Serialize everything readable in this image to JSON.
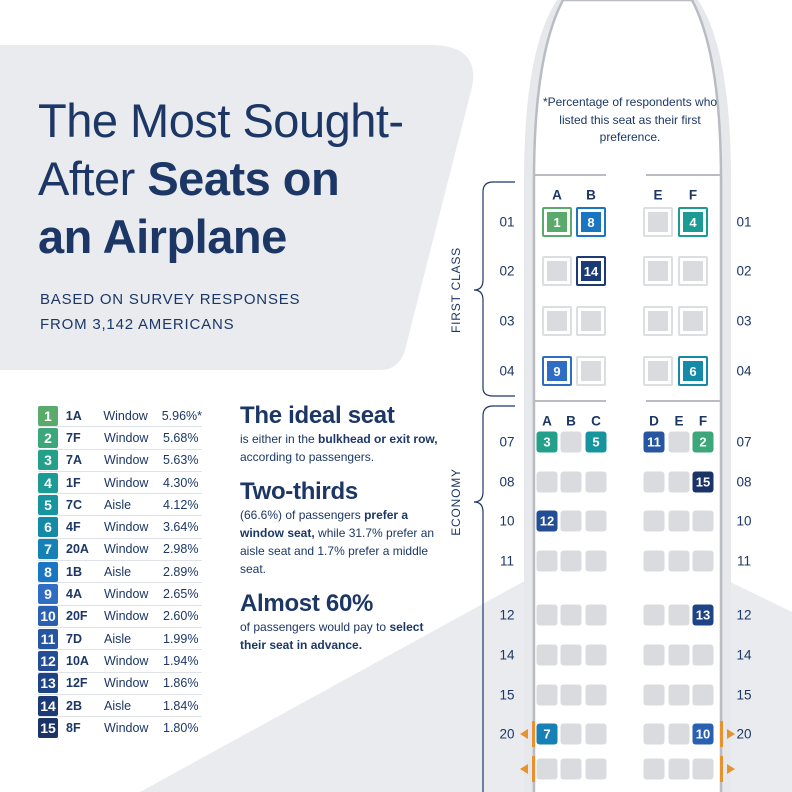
{
  "header": {
    "title_line1": "The Most Sought-",
    "title_line2_regular": "After ",
    "title_line2_bold": "Seats on",
    "title_line3_bold": "an Airplane",
    "subtitle_line1": "BASED ON SURVEY RESPONSES",
    "subtitle_line2": "FROM 3,142 AMERICANS"
  },
  "ranking": [
    {
      "rank": "1",
      "seat": "1A",
      "type": "Window",
      "pct": "5.96%*",
      "color": "#5aab6b"
    },
    {
      "rank": "2",
      "seat": "7F",
      "type": "Window",
      "pct": "5.68%",
      "color": "#3ba77a"
    },
    {
      "rank": "3",
      "seat": "7A",
      "type": "Window",
      "pct": "5.63%",
      "color": "#23a089"
    },
    {
      "rank": "4",
      "seat": "1F",
      "type": "Window",
      "pct": "4.30%",
      "color": "#1b9b94"
    },
    {
      "rank": "5",
      "seat": "7C",
      "type": "Aisle",
      "pct": "4.12%",
      "color": "#17959f"
    },
    {
      "rank": "6",
      "seat": "4F",
      "type": "Window",
      "pct": "3.64%",
      "color": "#158aa7"
    },
    {
      "rank": "7",
      "seat": "20A",
      "type": "Window",
      "pct": "2.98%",
      "color": "#1681b6"
    },
    {
      "rank": "8",
      "seat": "1B",
      "type": "Aisle",
      "pct": "2.89%",
      "color": "#1a75c2"
    },
    {
      "rank": "9",
      "seat": "4A",
      "type": "Window",
      "pct": "2.65%",
      "color": "#2f6cc4"
    },
    {
      "rank": "10",
      "seat": "20F",
      "type": "Window",
      "pct": "2.60%",
      "color": "#2a60b1"
    },
    {
      "rank": "11",
      "seat": "7D",
      "type": "Aisle",
      "pct": "1.99%",
      "color": "#2656a2"
    },
    {
      "rank": "12",
      "seat": "10A",
      "type": "Window",
      "pct": "1.94%",
      "color": "#234d94"
    },
    {
      "rank": "13",
      "seat": "12F",
      "type": "Window",
      "pct": "1.86%",
      "color": "#1f4486"
    },
    {
      "rank": "14",
      "seat": "2B",
      "type": "Aisle",
      "pct": "1.84%",
      "color": "#1c3b75"
    },
    {
      "rank": "15",
      "seat": "8F",
      "type": "Window",
      "pct": "1.80%",
      "color": "#1a3467"
    }
  ],
  "facts": [
    {
      "heading": "The ideal seat",
      "parts": [
        [
          "is either in the ",
          false
        ],
        [
          "bulkhead or exit row,",
          true
        ],
        [
          " according to passengers.",
          false
        ]
      ]
    },
    {
      "heading": "Two-thirds",
      "parts": [
        [
          "(66.6%) of passengers ",
          false
        ],
        [
          "prefer a window seat,",
          true
        ],
        [
          " while 31.7% prefer an aisle seat and 1.7% prefer a middle seat.",
          false
        ]
      ]
    },
    {
      "heading": "Almost 60%",
      "parts": [
        [
          "of passengers would pay to ",
          false
        ],
        [
          "select their seat in advance.",
          true
        ]
      ]
    }
  ],
  "seatmap": {
    "note": "*Percentage of respondents who listed this seat as their first preference.",
    "first_class": {
      "label": "FIRST CLASS",
      "columns": [
        "A",
        "B",
        "E",
        "F"
      ],
      "rows": [
        "01",
        "02",
        "03",
        "04"
      ],
      "ranked": {
        "01A": "1",
        "01B": "8",
        "01F": "4",
        "02B": "14",
        "04A": "9",
        "04F": "6"
      }
    },
    "economy": {
      "label": "ECONOMY",
      "columns": [
        "A",
        "B",
        "C",
        "D",
        "E",
        "F"
      ],
      "rows": [
        "07",
        "08",
        "10",
        "11",
        "12",
        "14",
        "15",
        "20",
        ""
      ],
      "ranked": {
        "07A": "3",
        "07C": "5",
        "07D": "11",
        "07F": "2",
        "08F": "15",
        "10A": "12",
        "12F": "13",
        "20A": "7",
        "20F": "10"
      }
    },
    "exit_marker_color": "#e8922f"
  }
}
